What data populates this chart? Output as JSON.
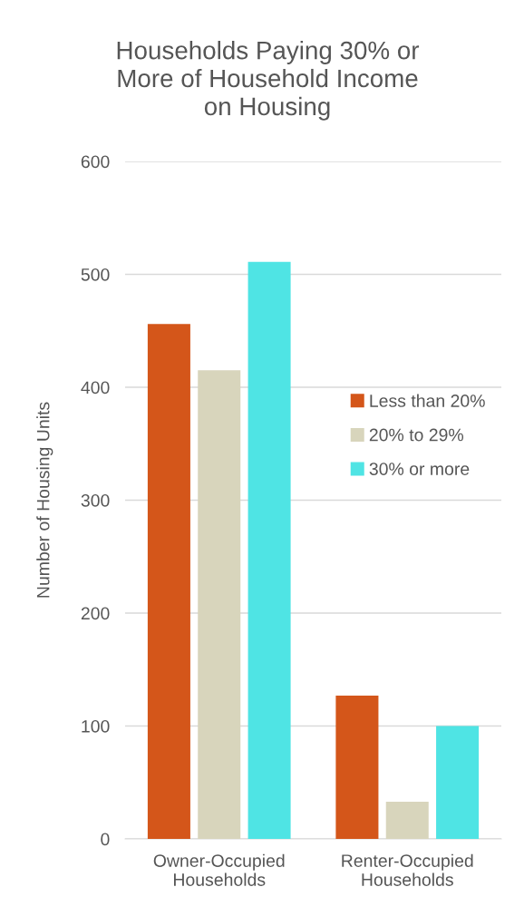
{
  "chart_data": {
    "type": "bar",
    "title": "Households Paying 30% or\nMore of Household Income\non Housing",
    "ylabel": "Number of Housing Units",
    "categories": [
      "Owner-Occupied\nHouseholds",
      "Renter-Occupied\nHouseholds"
    ],
    "series": [
      {
        "name": "Less than 20%",
        "color": "#d4561a",
        "values": [
          456,
          127
        ]
      },
      {
        "name": "20% to 29%",
        "color": "#d8d5bc",
        "values": [
          415,
          33
        ]
      },
      {
        "name": "30% or more",
        "color": "#4fe4e4",
        "values": [
          511,
          100
        ]
      }
    ],
    "ylim": [
      0,
      600
    ],
    "yticks": [
      0,
      100,
      200,
      300,
      400,
      500,
      600
    ],
    "grid": "y",
    "legend": "right"
  }
}
